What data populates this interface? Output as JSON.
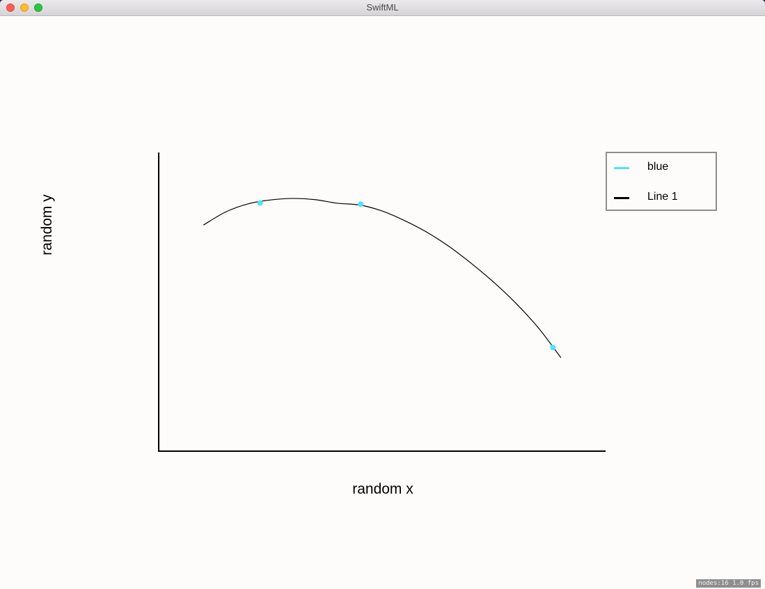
{
  "window": {
    "title": "SwiftML"
  },
  "status": {
    "text": "nodes:16  1.0 fps"
  },
  "colors": {
    "points": "#4fe3f7",
    "line": "#000000",
    "axis": "#000000",
    "legend_border": "#8e8e8e"
  },
  "chart_data": {
    "type": "scatter",
    "title": "",
    "xlabel": "random x",
    "ylabel": "random y",
    "xlim": [
      0,
      100
    ],
    "ylim": [
      0,
      100
    ],
    "grid": false,
    "legend_position": "top-right",
    "series": [
      {
        "name": "blue",
        "type": "scatter",
        "color": "#4fe3f7",
        "x": [
          22.7,
          45.2,
          88.2
        ],
        "y": [
          83.1,
          82.7,
          34.7
        ]
      },
      {
        "name": "Line 1",
        "type": "line",
        "color": "#000000",
        "x": [
          10.0,
          15.0,
          20.0,
          25.0,
          30.0,
          35.0,
          40.0,
          45.0,
          50.0,
          55.0,
          60.0,
          65.0,
          70.0,
          75.0,
          80.0,
          85.0,
          90.0
        ],
        "y": [
          75.7,
          80.1,
          82.8,
          84.1,
          84.6,
          84.2,
          83.0,
          82.4,
          80.4,
          77.2,
          73.3,
          68.5,
          62.8,
          56.5,
          49.4,
          41.2,
          31.3
        ]
      }
    ]
  }
}
